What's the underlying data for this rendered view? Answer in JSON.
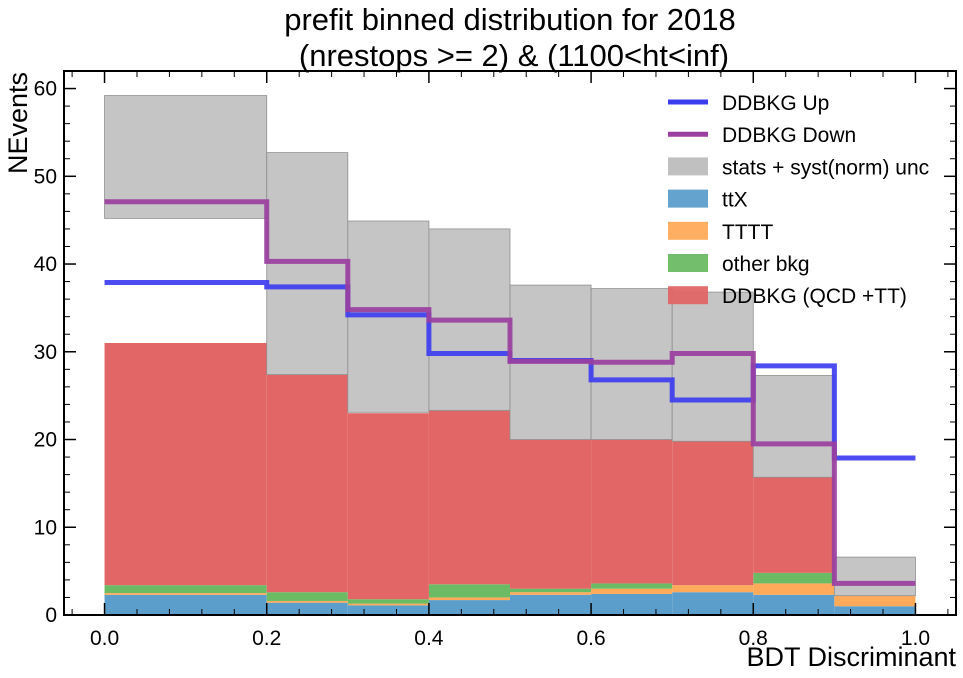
{
  "chart_data": {
    "type": "bar",
    "stacked": true,
    "title_line1": "prefit binned distribution for 2018",
    "title_line2": "(nrestops >= 2) & (1100<ht<inf)",
    "xlabel": "BDT Discriminant",
    "ylabel": "NEvents",
    "xlim": [
      -0.05,
      1.05
    ],
    "ylim": [
      0,
      62
    ],
    "xticks": [
      0.0,
      0.2,
      0.4,
      0.6,
      0.8,
      1.0
    ],
    "xtick_labels": [
      "0.0",
      "0.2",
      "0.4",
      "0.6",
      "0.8",
      "1.0"
    ],
    "yticks": [
      0,
      10,
      20,
      30,
      40,
      50,
      60
    ],
    "ytick_labels": [
      "0",
      "10",
      "20",
      "30",
      "40",
      "50",
      "60"
    ],
    "bin_edges": [
      0.0,
      0.2,
      0.3,
      0.4,
      0.5,
      0.6,
      0.7,
      0.8,
      0.9,
      1.0
    ],
    "stack": [
      {
        "name": "ttX",
        "color": "#5c9ecb",
        "values": [
          2.3,
          1.4,
          1.1,
          1.7,
          2.3,
          2.4,
          2.6,
          2.3,
          1.0
        ]
      },
      {
        "name": "TTTT",
        "color": "#ffaa5a",
        "values": [
          0.2,
          0.2,
          0.2,
          0.3,
          0.3,
          0.6,
          0.8,
          1.3,
          1.2
        ]
      },
      {
        "name": "other bkg",
        "color": "#6abb64",
        "values": [
          0.9,
          1.0,
          0.5,
          1.5,
          0.4,
          0.6,
          0.0,
          1.2,
          0.0
        ]
      },
      {
        "name": "DDBKG (QCD +TT)",
        "color": "#e26666",
        "values": [
          27.6,
          24.8,
          21.2,
          19.9,
          17.0,
          16.4,
          16.4,
          10.9,
          0.0
        ]
      }
    ],
    "unc_band": {
      "name": "stats + syst(norm) unc",
      "color": "#bdbdbd",
      "low": [
        45.2,
        27.4,
        23.1,
        23.3,
        20.0,
        20.0,
        19.8,
        15.7,
        2.2
      ],
      "high": [
        59.2,
        52.7,
        44.9,
        44.0,
        37.6,
        37.2,
        36.8,
        27.3,
        6.6
      ]
    },
    "lines": [
      {
        "name": "DDBKG Up",
        "color": "#3d3df0",
        "values": [
          37.9,
          37.4,
          34.2,
          29.8,
          29.0,
          26.8,
          24.5,
          28.4,
          17.9
        ]
      },
      {
        "name": "DDBKG Down",
        "color": "#9a3fa0",
        "values": [
          47.1,
          40.3,
          34.8,
          33.6,
          28.9,
          28.8,
          29.8,
          19.5,
          3.6
        ]
      }
    ],
    "legend_position": "upper-right"
  }
}
